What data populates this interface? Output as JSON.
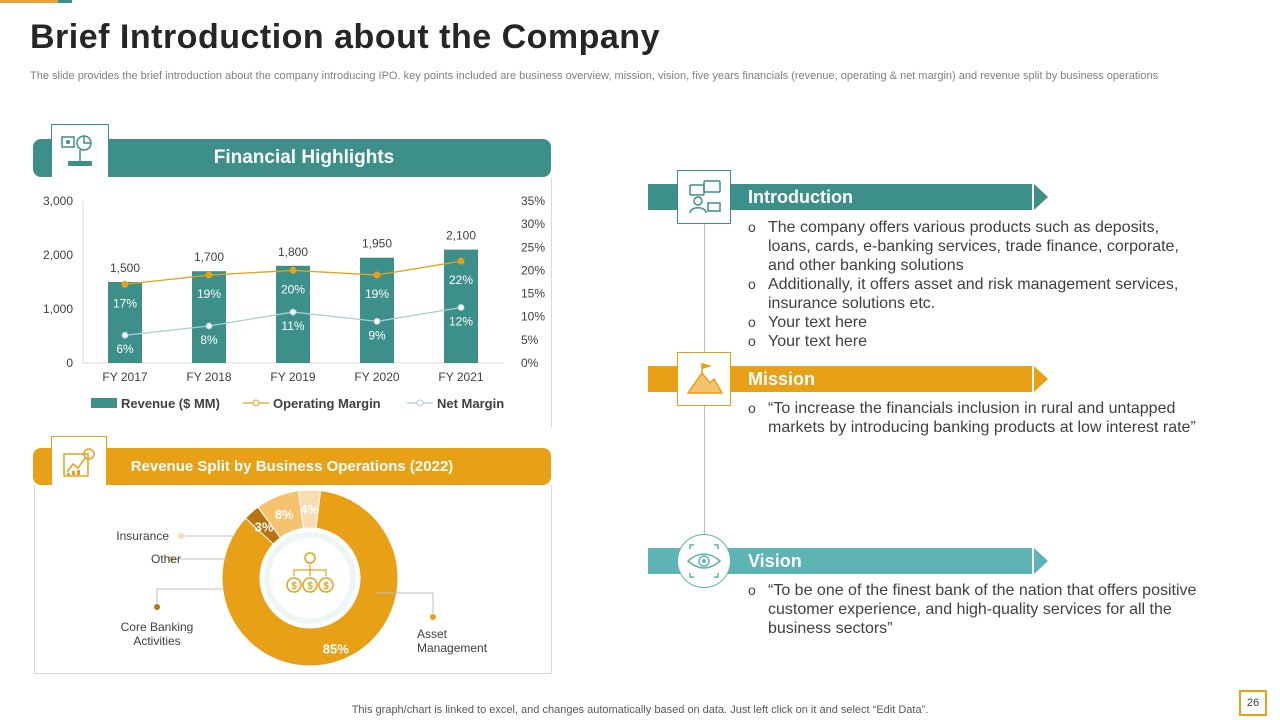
{
  "title": "Brief Introduction about the Company",
  "subtitle": "The slide provides the brief introduction about the company introducing IPO. key points included are business overview, mission, vision, five years financials (revenue, operating & net margin) and revenue split by business operations",
  "financial_highlights": {
    "heading": "Financial Highlights",
    "icon": "presentation-chart-icon"
  },
  "revenue_split": {
    "heading": "Revenue Split by Business Operations (2022)",
    "icon": "finance-chart-icon",
    "center_icon": "money-distribution-icon"
  },
  "chart_data": [
    {
      "type": "bar",
      "categories": [
        "FY 2017",
        "FY 2018",
        "FY 2019",
        "FY 2020",
        "FY 2021"
      ],
      "series": [
        {
          "name": "Revenue ($ MM)",
          "kind": "bar",
          "axis": "left",
          "values": [
            1500,
            1700,
            1800,
            1950,
            2100
          ],
          "labels": [
            "1,500",
            "1,700",
            "1,800",
            "1,950",
            "2,100"
          ],
          "color": "#3d8f8a"
        },
        {
          "name": "Operating Margin",
          "kind": "line",
          "axis": "right",
          "values": [
            17,
            19,
            20,
            19,
            22
          ],
          "labels": [
            "17%",
            "19%",
            "20%",
            "19%",
            "22%"
          ],
          "color": "#e8a017"
        },
        {
          "name": "Net Margin",
          "kind": "line",
          "axis": "right",
          "values": [
            6,
            8,
            11,
            9,
            12
          ],
          "labels": [
            "6%",
            "8%",
            "11%",
            "9%",
            "12%"
          ],
          "color": "#a6cfd6"
        }
      ],
      "y_left": {
        "ticks": [
          "0",
          "1,000",
          "2,000",
          "3,000"
        ],
        "lim": [
          0,
          3000
        ]
      },
      "y_right": {
        "ticks": [
          "0%",
          "5%",
          "10%",
          "15%",
          "20%",
          "25%",
          "30%",
          "35%"
        ],
        "lim": [
          0,
          35
        ]
      },
      "grid": false,
      "legend": "bottom"
    },
    {
      "type": "pie",
      "donut": true,
      "slices": [
        {
          "name": "Asset Management",
          "value": 85,
          "label": "85%",
          "color": "#e8a017"
        },
        {
          "name": "Core Banking Activities",
          "value": 3,
          "label": "3%",
          "color": "#b8740f"
        },
        {
          "name": "Other",
          "value": 8,
          "label": "8%",
          "color": "#f5c36e"
        },
        {
          "name": "Insurance",
          "value": 4,
          "label": "4%",
          "color": "#f9ddb0"
        }
      ]
    }
  ],
  "sections": [
    {
      "title": "Introduction",
      "color": "#3d8f8a",
      "icon": "presentation-person-icon",
      "bullets": [
        "The company offers various products such as deposits, loans, cards, e-banking services, trade finance, corporate, and other banking solutions",
        "Additionally, it offers asset and risk management services, insurance solutions etc.",
        "Your text here",
        "Your text here"
      ]
    },
    {
      "title": "Mission",
      "color": "#e8a017",
      "icon": "mountain-flag-icon",
      "bullets": [
        "“To increase the financials inclusion in rural and untapped markets by introducing banking products at low interest rate”"
      ]
    },
    {
      "title": "Vision",
      "color": "#5eb3b3",
      "icon": "eye-icon",
      "bullets": [
        "“To be one of the finest bank of the nation that offers positive customer experience, and high-quality services for all the business sectors”"
      ]
    }
  ],
  "footnote": "This graph/chart is linked to excel, and changes automatically based on data. Just left click on it and select “Edit Data”.",
  "page_number": "26"
}
